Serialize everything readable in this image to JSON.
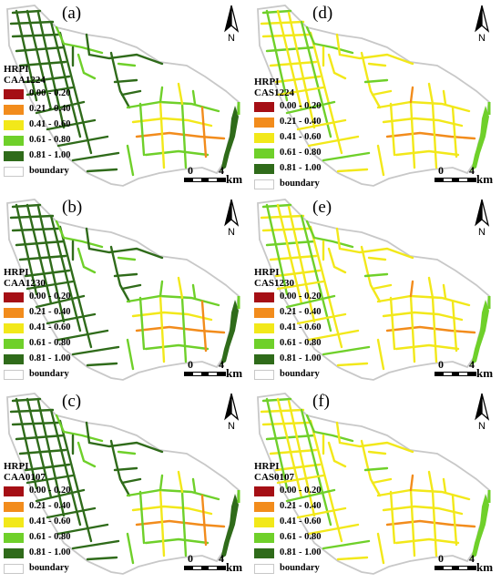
{
  "legend_title": "HRPI",
  "classes": [
    {
      "label": "0.00 - 0.20",
      "color": "#a50f15"
    },
    {
      "label": "0.21 - 0.40",
      "color": "#f28c1c"
    },
    {
      "label": "0.41 - 0.60",
      "color": "#f2e81a"
    },
    {
      "label": "0.61 - 0.80",
      "color": "#6fd02a"
    },
    {
      "label": "0.81 - 1.00",
      "color": "#2f6b1a"
    }
  ],
  "boundary_label": "boundary",
  "boundary_color": "#c8c8c8",
  "north_label": "N",
  "scale": {
    "zero": "0",
    "four": "4",
    "unit": "km"
  },
  "panels": [
    {
      "label": "(a)",
      "scenario": "CAA1224",
      "palette": "dark"
    },
    {
      "label": "(d)",
      "scenario": "CAS1224",
      "palette": "yellow"
    },
    {
      "label": "(b)",
      "scenario": "CAA1230",
      "palette": "dark"
    },
    {
      "label": "(e)",
      "scenario": "CAS1230",
      "palette": "yellow"
    },
    {
      "label": "(c)",
      "scenario": "CAA0107",
      "palette": "dark"
    },
    {
      "label": "(f)",
      "scenario": "CAS0107",
      "palette": "yellow"
    }
  ]
}
